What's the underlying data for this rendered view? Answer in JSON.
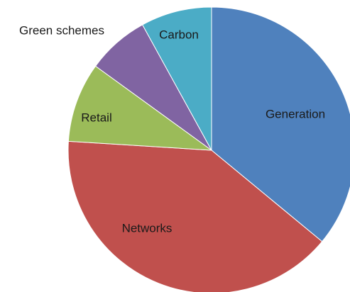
{
  "chart_data": {
    "type": "pie",
    "title": "",
    "slices": [
      {
        "label": "Generation",
        "value": 36,
        "color": "#4F81BD"
      },
      {
        "label": "Networks",
        "value": 40,
        "color": "#C0504D"
      },
      {
        "label": "Retail",
        "value": 9,
        "color": "#9BBB59"
      },
      {
        "label": "Green schemes",
        "value": 7,
        "color": "#8064A2"
      },
      {
        "label": "Carbon",
        "value": 8,
        "color": "#4BACC6"
      }
    ],
    "start_angle_deg": 0,
    "direction": "clockwise",
    "legend": "none",
    "labels_on_slices": true
  }
}
